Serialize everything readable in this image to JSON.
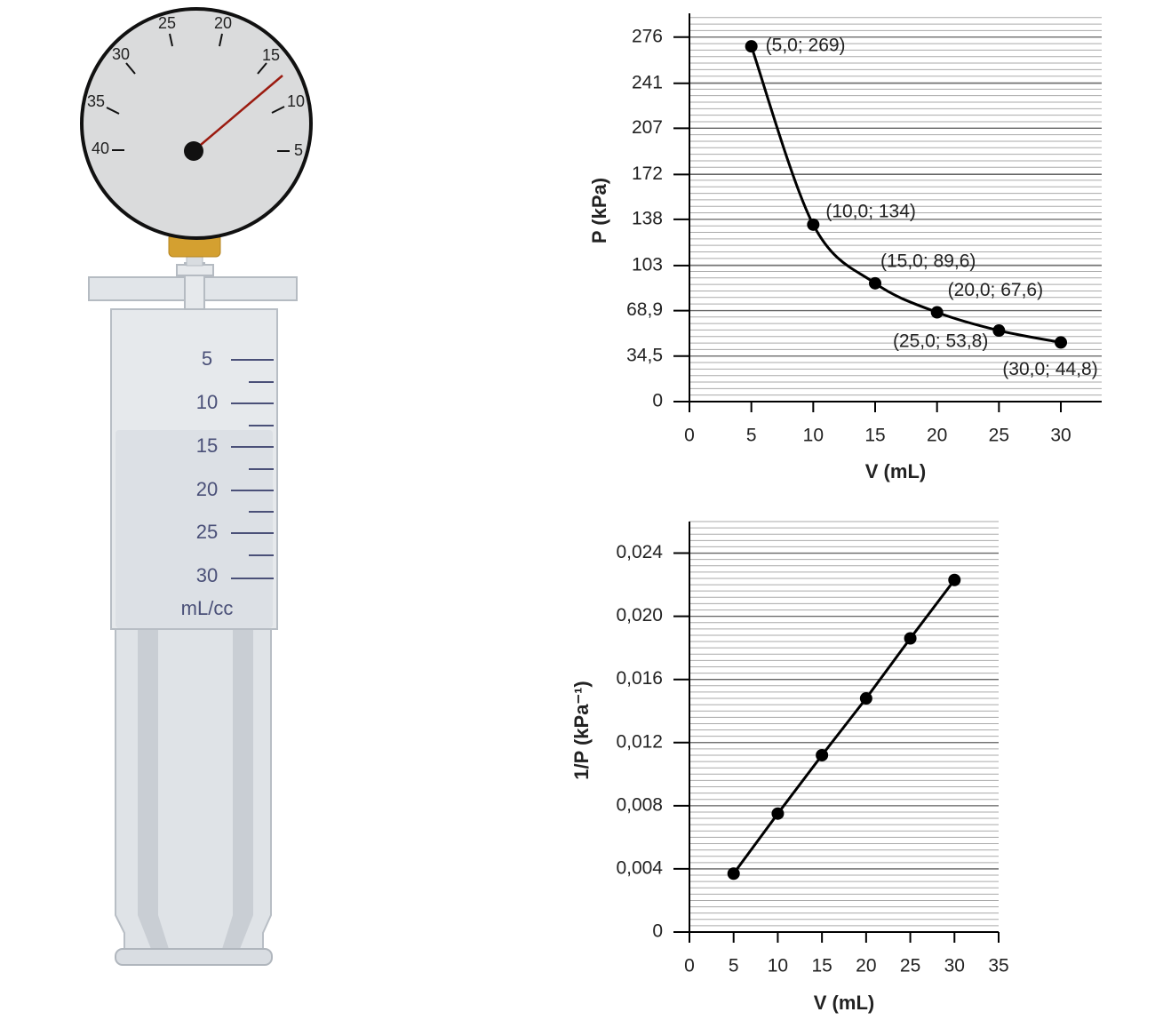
{
  "illustration": {
    "gauge_labels": [
      "40",
      "35",
      "30",
      "25",
      "20",
      "15",
      "10",
      "5"
    ],
    "syringe_scale": [
      "5",
      "10",
      "15",
      "20",
      "25",
      "30"
    ],
    "unit": "mL/cc"
  },
  "chart_data": [
    {
      "type": "line",
      "smooth": true,
      "markers": true,
      "grid": true,
      "color": "#000000",
      "xlabel": "V (mL)",
      "ylabel": "P (kPa)",
      "x": [
        5,
        10,
        15,
        20,
        25,
        30
      ],
      "values": [
        269,
        134,
        89.6,
        67.6,
        53.8,
        44.8
      ],
      "value_labels": [
        "(5,0; 269)",
        "(10,0; 134)",
        "(15,0; 89,6)",
        "(20,0; 67,6)",
        "(25,0; 53,8)",
        "(30,0; 44,8)"
      ],
      "xlim": [
        0,
        33.3
      ],
      "ylim": [
        0,
        294
      ],
      "xticks": [
        0,
        5,
        10,
        15,
        20,
        25,
        30
      ],
      "yticks": [
        0,
        {
          "value": 34.5,
          "label": "34,5"
        },
        {
          "value": 68.9,
          "label": "68,9"
        },
        103,
        138,
        172,
        207,
        241,
        276
      ]
    },
    {
      "type": "line",
      "smooth": false,
      "markers": true,
      "grid": true,
      "color": "#000000",
      "xlabel": "V (mL)",
      "ylabel": "1/P (kPa⁻¹)",
      "x": [
        5,
        10,
        15,
        20,
        25,
        30
      ],
      "values": [
        0.0037,
        0.0075,
        0.0112,
        0.0148,
        0.0186,
        0.0223
      ],
      "xlim": [
        0,
        35
      ],
      "ylim": [
        0,
        0.026
      ],
      "xticks": [
        0,
        5,
        10,
        15,
        20,
        25,
        30,
        35
      ],
      "yticks": [
        0,
        {
          "value": 0.004,
          "label": "0,004"
        },
        {
          "value": 0.008,
          "label": "0,008"
        },
        {
          "value": 0.012,
          "label": "0,012"
        },
        {
          "value": 0.016,
          "label": "0,016"
        },
        {
          "value": 0.02,
          "label": "0,020"
        },
        {
          "value": 0.024,
          "label": "0,024"
        }
      ]
    }
  ]
}
